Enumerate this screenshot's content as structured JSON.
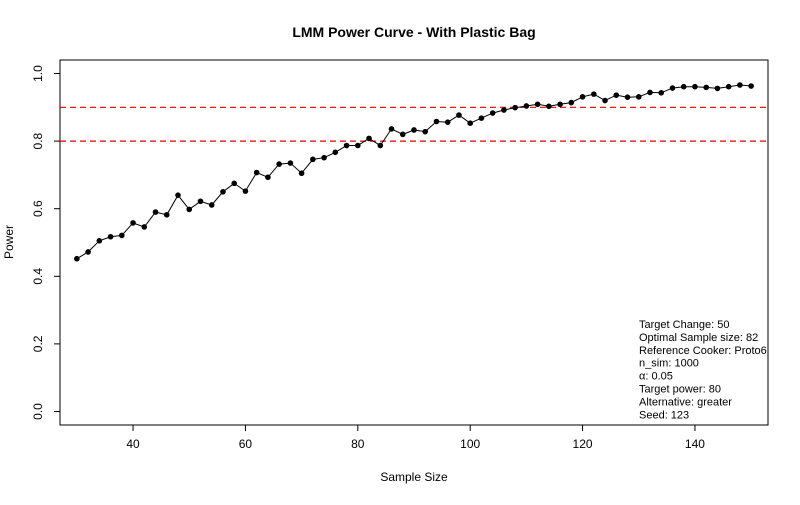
{
  "chart_data": {
    "type": "line",
    "title": "LMM Power Curve - With Plastic Bag",
    "xlabel": "Sample Size",
    "ylabel": "Power",
    "xlim": [
      27,
      153
    ],
    "ylim": [
      -0.04,
      1.04
    ],
    "x_ticks": [
      40,
      60,
      80,
      100,
      120,
      140
    ],
    "y_ticks": [
      0.0,
      0.2,
      0.4,
      0.6,
      0.8,
      1.0
    ],
    "x_tick_labels": [
      "40",
      "60",
      "80",
      "100",
      "120",
      "140"
    ],
    "y_tick_labels": [
      "0.0",
      "0.2",
      "0.4",
      "0.6",
      "0.8",
      "1.0"
    ],
    "grid": false,
    "reference_lines": [
      0.8,
      0.9
    ],
    "reference_line_color": "#dd0000",
    "line_color": "#000000",
    "series": [
      {
        "x": [
          30,
          32,
          34,
          36,
          38,
          40,
          42,
          44,
          46,
          48,
          50,
          52,
          54,
          56,
          58,
          60,
          62,
          64,
          66,
          68,
          70,
          72,
          74,
          76,
          78,
          80,
          82,
          84,
          86,
          88,
          90,
          92,
          94,
          96,
          98,
          100,
          102,
          104,
          106,
          108,
          110,
          112,
          114,
          116,
          118,
          120,
          122,
          124,
          126,
          128,
          130,
          132,
          134,
          136,
          138,
          140,
          142,
          144,
          146,
          148,
          150
        ],
        "values": [
          0.452,
          0.472,
          0.505,
          0.517,
          0.521,
          0.558,
          0.546,
          0.59,
          0.582,
          0.64,
          0.598,
          0.622,
          0.611,
          0.65,
          0.675,
          0.652,
          0.707,
          0.693,
          0.732,
          0.735,
          0.705,
          0.746,
          0.751,
          0.767,
          0.787,
          0.787,
          0.808,
          0.787,
          0.836,
          0.82,
          0.833,
          0.828,
          0.858,
          0.856,
          0.877,
          0.853,
          0.868,
          0.883,
          0.892,
          0.899,
          0.904,
          0.909,
          0.903,
          0.909,
          0.914,
          0.931,
          0.939,
          0.92,
          0.936,
          0.93,
          0.931,
          0.944,
          0.943,
          0.957,
          0.961,
          0.961,
          0.959,
          0.956,
          0.961,
          0.966,
          0.963
        ]
      }
    ],
    "legend_placement": "bottom-right",
    "legend_lines": [
      "Target Change: 50",
      "Optimal Sample size: 82",
      "Reference Cooker: Proto6",
      "n_sim: 1000",
      "α: 0.05",
      "Target power: 80",
      "Alternative: greater",
      "Seed: 123"
    ]
  }
}
